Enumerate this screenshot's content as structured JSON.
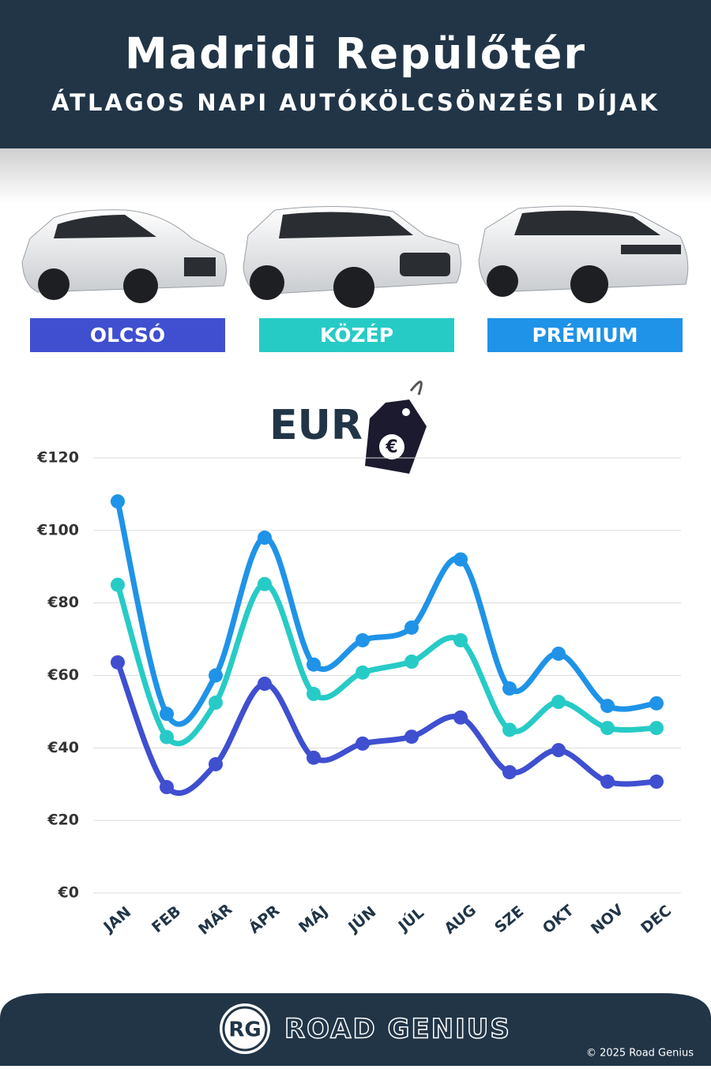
{
  "chart_data": {
    "type": "line",
    "title": "Madridi Repülőtér",
    "subtitle": "ÁTLAGOS NAPI AUTÓKÖLCSÖNZÉSI DÍJAK",
    "y_unit_label": "EUR",
    "categories": [
      "JAN",
      "FEB",
      "MÁR",
      "ÁPR",
      "MÁJ",
      "JÚN",
      "JÚL",
      "AUG",
      "SZE",
      "OKT",
      "NOV",
      "DEC"
    ],
    "series": [
      {
        "name": "OLCSÓ",
        "color": "#3f4fd0",
        "values": [
          63.6,
          29.2,
          35.5,
          57.7,
          37.3,
          41.2,
          43.1,
          48.4,
          33.3,
          39.4,
          30.7,
          30.7
        ]
      },
      {
        "name": "KÖZÉP",
        "color": "#27cbc6",
        "values": [
          85,
          43,
          52.5,
          85.2,
          54.9,
          60.8,
          63.8,
          69.7,
          45,
          52.7,
          45.5,
          45.5
        ]
      },
      {
        "name": "PRÉMIUM",
        "color": "#1f93e8",
        "values": [
          108,
          49.4,
          60,
          98,
          63,
          69.7,
          73.2,
          92,
          56.4,
          66,
          51.6,
          52.3
        ]
      }
    ],
    "ylim": [
      0,
      120
    ],
    "yticks": [
      {
        "value": 0,
        "label": "€0"
      },
      {
        "value": 20,
        "label": "€20"
      },
      {
        "value": 40,
        "label": "€40"
      },
      {
        "value": 60,
        "label": "€60"
      },
      {
        "value": 80,
        "label": "€80"
      },
      {
        "value": 100,
        "label": "€100"
      },
      {
        "value": 120,
        "label": "€120"
      }
    ],
    "grid": true
  },
  "footer": {
    "logo": "RG",
    "brand": "ROAD GENIUS",
    "copyright": "© 2025 Road Genius"
  }
}
